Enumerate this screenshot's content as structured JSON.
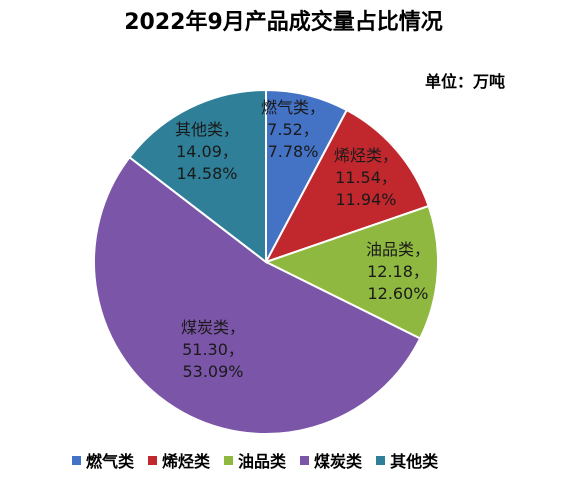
{
  "chart_data": {
    "type": "pie",
    "title": "2022年9月产品成交量占比情况",
    "unit_label": "单位：万吨",
    "slices": [
      {
        "name": "燃气类",
        "value": 7.52,
        "value_label": "7.52，",
        "percent_label": "7.78%",
        "color": "#4472c4"
      },
      {
        "name": "烯烃类",
        "value": 11.54,
        "value_label": "11.54，",
        "percent_label": "11.94%",
        "color": "#c0282d"
      },
      {
        "name": "油品类",
        "value": 12.18,
        "value_label": "12.18，",
        "percent_label": "12.60%",
        "color": "#8fb840"
      },
      {
        "name": "煤炭类",
        "value": 51.3,
        "value_label": "51.30，",
        "percent_label": "53.09%",
        "color": "#7b55a7"
      },
      {
        "name": "其他类",
        "value": 14.09,
        "value_label": "14.09，",
        "percent_label": "14.58%",
        "color": "#2e7f97"
      }
    ],
    "legend_position": "bottom"
  }
}
